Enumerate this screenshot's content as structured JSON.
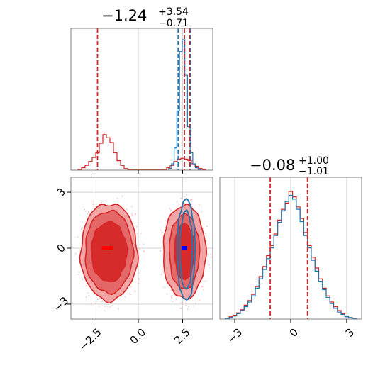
{
  "chart_data": [
    {
      "panel": "top-left",
      "type": "histogram",
      "title": {
        "main": "−1.24",
        "sup": "+3.54",
        "sub": "−0.71"
      },
      "xlim": [
        -3.8,
        4.2
      ],
      "x_ticks": [
        -2.5,
        0.0,
        2.5
      ],
      "quantile_lines": {
        "red": [
          -2.3,
          2.6,
          2.9
        ],
        "blue": [
          2.25,
          2.6,
          2.95
        ]
      },
      "series": [
        {
          "name": "",
          "color": "#d62728",
          "x": [
            -3.3,
            -3.1,
            -2.9,
            -2.7,
            -2.5,
            -2.3,
            -2.1,
            -1.9,
            -1.7,
            -1.5,
            -1.3,
            -1.1,
            -0.9,
            -0.7,
            -0.5,
            1.5,
            1.7,
            1.9,
            2.1,
            2.3,
            2.5,
            2.7,
            2.9,
            3.1,
            3.3,
            3.5,
            3.7
          ],
          "counts": [
            1,
            3,
            6,
            11,
            16,
            22,
            34,
            45,
            41,
            35,
            22,
            12,
            6,
            2,
            1,
            1,
            3,
            6,
            11,
            14,
            15,
            14,
            12,
            8,
            5,
            2,
            1
          ]
        },
        {
          "name": "",
          "color": "#1f77b4",
          "x": [
            1.8,
            1.95,
            2.1,
            2.25,
            2.4,
            2.55,
            2.7,
            2.85,
            3.0,
            3.15,
            3.3,
            3.45
          ],
          "counts": [
            2,
            8,
            28,
            75,
            150,
            165,
            120,
            55,
            22,
            8,
            3,
            1
          ]
        }
      ]
    },
    {
      "panel": "bottom-left",
      "type": "contour",
      "xlim": [
        -3.8,
        4.2
      ],
      "ylim": [
        -3.8,
        3.8
      ],
      "x_ticks": [
        -2.5,
        0.0,
        2.5
      ],
      "y_ticks": [
        -3,
        0,
        3
      ],
      "markers": [
        {
          "color": "red",
          "x": -1.9,
          "y": 0.0
        },
        {
          "color": "red",
          "x": -1.6,
          "y": 0.0
        },
        {
          "color": "blue",
          "x": 2.6,
          "y": 0.0
        }
      ],
      "regions": [
        {
          "color": "#d62728",
          "cx": -1.65,
          "cy": -0.2,
          "levels_rx": [
            1.6,
            1.35,
            1.0
          ],
          "levels_ry": [
            2.6,
            2.2,
            1.6
          ]
        },
        {
          "color": "#d62728",
          "cx": 2.6,
          "cy": -0.2,
          "levels_rx": [
            1.2,
            0.85,
            0.55
          ],
          "levels_ry": [
            2.5,
            2.0,
            1.5
          ]
        },
        {
          "color": "#1f77b4",
          "cx": 2.7,
          "cy": -0.1,
          "levels_rx": [
            0.5,
            0.35
          ],
          "levels_ry": [
            2.7,
            2.1
          ]
        }
      ]
    },
    {
      "panel": "bottom-right",
      "type": "histogram",
      "title": {
        "main": "−0.08",
        "sup": "+1.00",
        "sub": "−1.01"
      },
      "xlim": [
        -3.8,
        3.8
      ],
      "x_ticks": [
        -3,
        0,
        3
      ],
      "quantile_lines": {
        "red": [
          -1.1,
          0.9
        ]
      },
      "series": [
        {
          "name": "",
          "color": "#d62728",
          "x": [
            -3.4,
            -3.2,
            -3.0,
            -2.8,
            -2.6,
            -2.4,
            -2.2,
            -2.0,
            -1.8,
            -1.6,
            -1.4,
            -1.2,
            -1.0,
            -0.8,
            -0.6,
            -0.4,
            -0.2,
            0.0,
            0.2,
            0.4,
            0.6,
            0.8,
            1.0,
            1.2,
            1.4,
            1.6,
            1.8,
            2.0,
            2.2,
            2.4,
            2.6,
            2.8,
            3.0,
            3.2,
            3.4
          ],
          "counts": [
            1,
            3,
            5,
            8,
            12,
            18,
            24,
            32,
            42,
            55,
            68,
            82,
            95,
            110,
            128,
            142,
            150,
            165,
            158,
            145,
            130,
            112,
            95,
            80,
            66,
            52,
            40,
            30,
            22,
            16,
            11,
            7,
            4,
            2,
            1
          ]
        },
        {
          "name": "",
          "color": "#1f77b4",
          "x": [
            -3.4,
            -3.2,
            -3.0,
            -2.8,
            -2.6,
            -2.4,
            -2.2,
            -2.0,
            -1.8,
            -1.6,
            -1.4,
            -1.2,
            -1.0,
            -0.8,
            -0.6,
            -0.4,
            -0.2,
            0.0,
            0.2,
            0.4,
            0.6,
            0.8,
            1.0,
            1.2,
            1.4,
            1.6,
            1.8,
            2.0,
            2.2,
            2.4,
            2.6,
            2.8,
            3.0,
            3.2,
            3.4
          ],
          "counts": [
            1,
            2,
            4,
            7,
            11,
            16,
            22,
            30,
            40,
            52,
            64,
            78,
            92,
            108,
            125,
            140,
            152,
            160,
            155,
            142,
            126,
            108,
            92,
            76,
            62,
            49,
            38,
            28,
            20,
            14,
            9,
            6,
            3,
            2,
            1
          ]
        }
      ]
    }
  ]
}
